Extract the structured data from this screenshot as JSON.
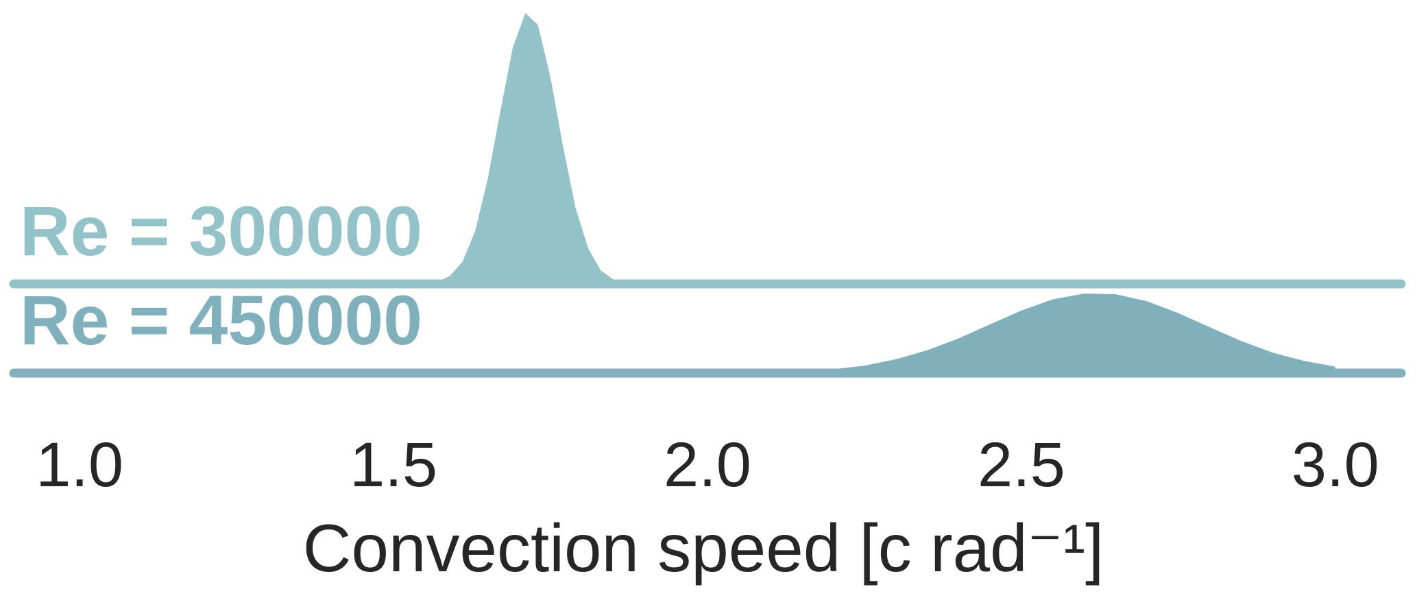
{
  "chart_data": {
    "type": "ridgeline",
    "xlabel": "Convection speed [c rad⁻¹]",
    "xlim": [
      0.895,
      3.105
    ],
    "xticks": [
      {
        "value": 1,
        "label": "1.0"
      },
      1.5,
      {
        "value": 2,
        "label": "2.0"
      },
      2.5,
      {
        "value": 3,
        "label": "3.0"
      }
    ],
    "ylim": [
      0,
      8.6
    ],
    "series": [
      {
        "name": "Re = 300000",
        "color": "#93c2c9",
        "x": [
          1.55,
          1.57,
          1.59,
          1.61,
          1.63,
          1.65,
          1.67,
          1.69,
          1.71,
          1.73,
          1.75,
          1.77,
          1.79,
          1.81,
          1.83,
          1.85,
          1.87,
          1.89
        ],
        "values": [
          0.02,
          0.07,
          0.25,
          0.7,
          1.65,
          3.27,
          5.38,
          7.38,
          8.45,
          8.08,
          6.44,
          4.28,
          2.36,
          1.11,
          0.42,
          0.14,
          0.04,
          0.01
        ]
      },
      {
        "name": "Re = 450000",
        "color": "#7fb0bc",
        "x": [
          2.2,
          2.25,
          2.3,
          2.35,
          2.4,
          2.45,
          2.5,
          2.55,
          2.6,
          2.65,
          2.7,
          2.75,
          2.8,
          2.85,
          2.9,
          2.95,
          3.0
        ],
        "values": [
          0.12,
          0.23,
          0.43,
          0.71,
          1.08,
          1.52,
          1.95,
          2.3,
          2.48,
          2.46,
          2.24,
          1.87,
          1.43,
          1.0,
          0.64,
          0.38,
          0.2
        ]
      }
    ]
  }
}
